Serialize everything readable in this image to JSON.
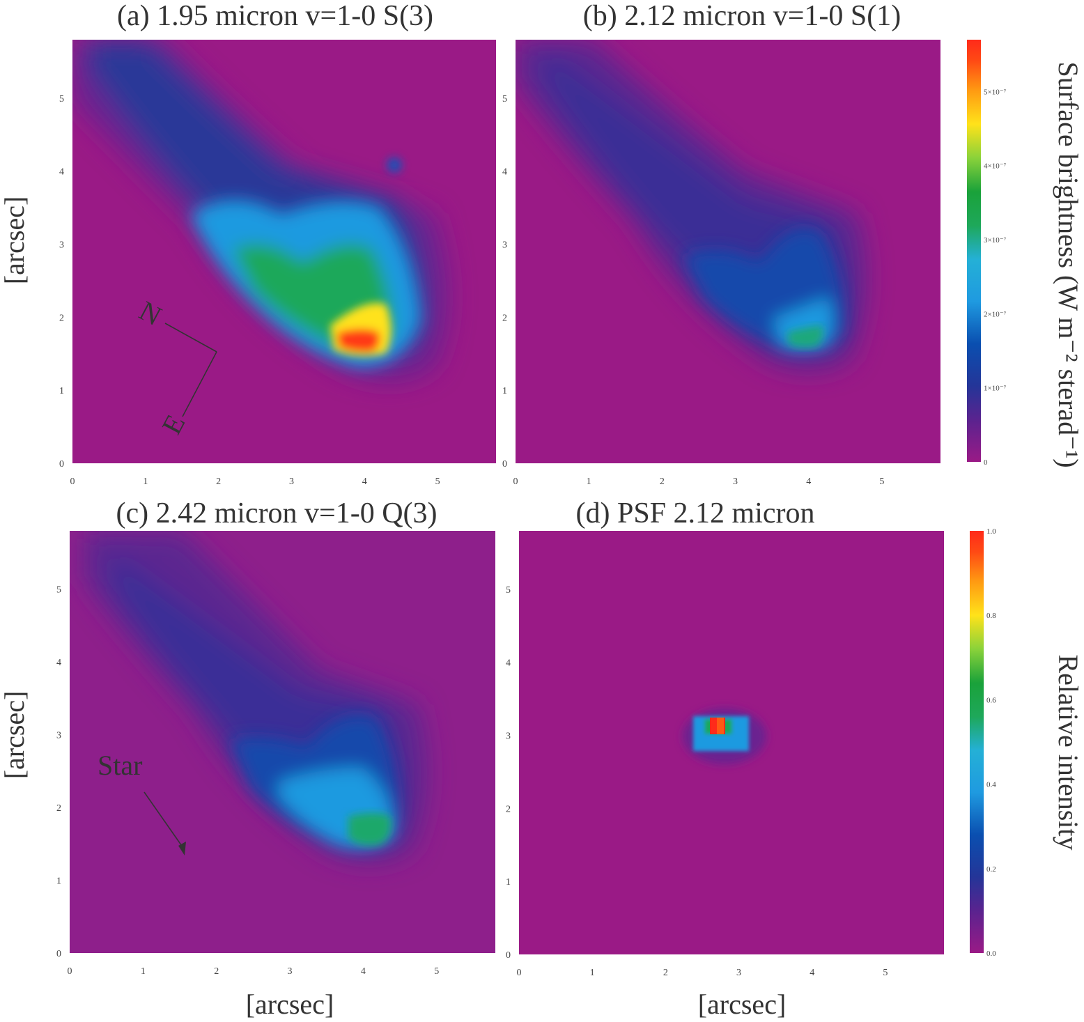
{
  "chart_data": [
    {
      "id": "a",
      "type": "heatmap",
      "title": "(a) 1.95 micron v=1-0 S(3)",
      "ylabel": "[arcsec]",
      "xlabel": "",
      "xticks": [
        "0",
        "1",
        "2",
        "3",
        "4",
        "5"
      ],
      "yticks": [
        "0",
        "1",
        "2",
        "3",
        "4",
        "5"
      ],
      "xlim": [
        0,
        5.8
      ],
      "ylim": [
        0,
        5.8
      ],
      "peak_fraction": 1.0,
      "annotations": [
        {
          "text": "N",
          "kind": "compass"
        },
        {
          "text": "E",
          "kind": "compass"
        }
      ]
    },
    {
      "id": "b",
      "type": "heatmap",
      "title": "(b) 2.12 micron v=1-0 S(1)",
      "ylabel": "",
      "xlabel": "",
      "xticks": [
        "0",
        "1",
        "2",
        "3",
        "4",
        "5"
      ],
      "yticks": [
        "0",
        "1",
        "2",
        "3",
        "4",
        "5"
      ],
      "xlim": [
        0,
        5.8
      ],
      "ylim": [
        0,
        5.8
      ],
      "peak_fraction": 0.48
    },
    {
      "id": "c",
      "type": "heatmap",
      "title": "(c) 2.42 micron v=1-0 Q(3)",
      "ylabel": "[arcsec]",
      "xlabel": "[arcsec]",
      "xticks": [
        "0",
        "1",
        "2",
        "3",
        "4",
        "5"
      ],
      "yticks": [
        "0",
        "1",
        "2",
        "3",
        "4",
        "5"
      ],
      "xlim": [
        0,
        5.8
      ],
      "ylim": [
        0,
        5.8
      ],
      "peak_fraction": 0.5,
      "annotations": [
        {
          "text": "Star",
          "kind": "arrow-label"
        }
      ]
    },
    {
      "id": "d",
      "type": "heatmap",
      "title": "(d) PSF 2.12 micron",
      "ylabel": "",
      "xlabel": "[arcsec]",
      "xticks": [
        "0",
        "1",
        "2",
        "3",
        "4",
        "5"
      ],
      "yticks": [
        "0",
        "1",
        "2",
        "3",
        "4",
        "5"
      ],
      "xlim": [
        0,
        5.8
      ],
      "ylim": [
        0,
        5.8
      ],
      "peak_fraction": 1.0
    }
  ],
  "colorbars": [
    {
      "label": "Surface brightness (W m⁻² sterad⁻¹)",
      "ticks": [
        "0",
        "1×10⁻⁷",
        "2×10⁻⁷",
        "3×10⁻⁷",
        "4×10⁻⁷",
        "5×10⁻⁷"
      ],
      "range": [
        0,
        5.7e-07
      ]
    },
    {
      "label": "Relative intensity",
      "ticks": [
        "0.0",
        "0.2",
        "0.4",
        "0.6",
        "0.8",
        "1.0"
      ],
      "range": [
        0,
        1.0
      ]
    }
  ],
  "colormap": [
    "#9a1a86",
    "#7f1f8e",
    "#3b2f99",
    "#0a4fb0",
    "#1f9ae0",
    "#27b6e6",
    "#1ea85a",
    "#1aa23a",
    "#8ad23a",
    "#ffe21a",
    "#ff9a12",
    "#ff4a14",
    "#ff2a1a"
  ]
}
